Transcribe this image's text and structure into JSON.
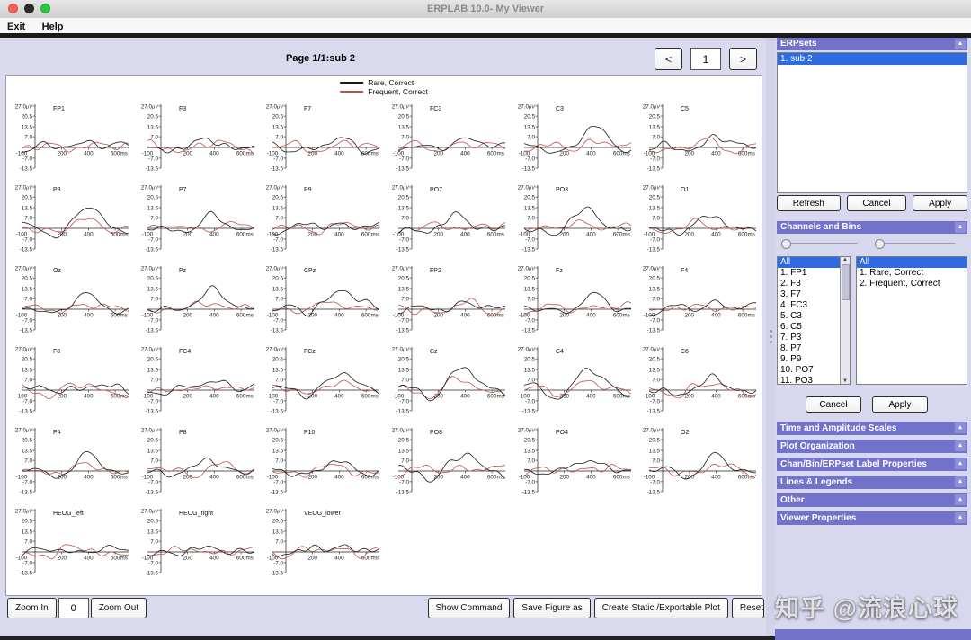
{
  "window": {
    "title": "ERPLAB 10.0- My Viewer"
  },
  "menu": {
    "exit": "Exit",
    "help": "Help"
  },
  "viewer": {
    "page_label": "Page 1/1:sub 2",
    "nav": {
      "prev": "<",
      "page": "1",
      "next": ">"
    },
    "legend": [
      {
        "label": "Rare, Correct",
        "color": "#1a1a1a"
      },
      {
        "label": "Frequent, Correct",
        "color": "#c0504d"
      }
    ],
    "axes": {
      "y_unit": "μV",
      "y_ticks": [
        "27.0",
        "20.5",
        "13.5",
        "7.0",
        "-7.0",
        "-13.5"
      ],
      "x_start": "-100",
      "x_ticks": [
        "200",
        "400",
        "600"
      ],
      "x_unit": "ms"
    },
    "channels": [
      "FP1",
      "F3",
      "F7",
      "FC3",
      "C3",
      "C5",
      "P3",
      "P7",
      "P9",
      "PO7",
      "PO3",
      "O1",
      "Oz",
      "Pz",
      "CPz",
      "FP2",
      "Fz",
      "F4",
      "F8",
      "FC4",
      "FCz",
      "Cz",
      "C4",
      "C6",
      "P4",
      "P8",
      "P10",
      "PO8",
      "PO4",
      "O2",
      "HEOG_left",
      "HEOG_right",
      "VEOG_lower"
    ]
  },
  "toolbar": {
    "zoom_in": "Zoom In",
    "zoom_value": "0",
    "zoom_out": "Zoom Out",
    "show_command": "Show Command",
    "save_figure": "Save Figure as",
    "create_static": "Create Static /Exportable Plot",
    "reset": "Reset"
  },
  "panel": {
    "erpsets": {
      "title": "ERPsets",
      "items": [
        "1. sub 2"
      ],
      "buttons": {
        "refresh": "Refresh",
        "cancel": "Cancel",
        "apply": "Apply"
      }
    },
    "channels_bins": {
      "title": "Channels and Bins",
      "channel_list": [
        "All",
        "1. FP1",
        "2. F3",
        "3. F7",
        "4. FC3",
        "5. C3",
        "6. C5",
        "7. P3",
        "8. P7",
        "9. P9",
        "10. PO7",
        "11. PO3"
      ],
      "bin_list": [
        "All",
        "1. Rare, Correct",
        "2. Frequent, Correct"
      ],
      "buttons": {
        "cancel": "Cancel",
        "apply": "Apply"
      }
    },
    "sections": [
      "Time and Amplitude Scales",
      "Plot Organization",
      "Chan/Bin/ERPset Label Properties",
      "Lines & Legends",
      "Other",
      "Viewer Properties"
    ]
  },
  "watermark": "知乎 @流浪心球"
}
